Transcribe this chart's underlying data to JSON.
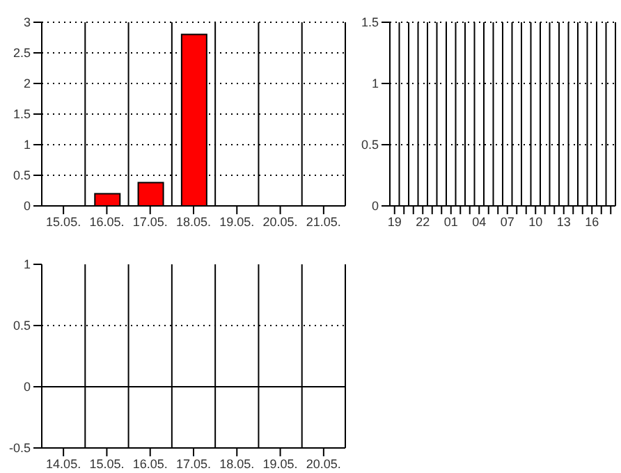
{
  "chart_data": [
    {
      "type": "bar",
      "categories": [
        "15.05.",
        "16.05.",
        "17.05.",
        "18.05.",
        "19.05.",
        "20.05.",
        "21.05."
      ],
      "values": [
        0,
        0.2,
        0.38,
        2.8,
        0,
        0,
        0
      ],
      "color": "#ff0000",
      "ylim": [
        0,
        3
      ],
      "yticks": [
        0,
        0.5,
        1,
        1.5,
        2,
        2.5,
        3
      ],
      "grid": true,
      "legend": false
    },
    {
      "type": "bar",
      "categories": [
        "19",
        null,
        null,
        "22",
        null,
        null,
        "01",
        null,
        null,
        "04",
        null,
        null,
        "07",
        null,
        null,
        "10",
        null,
        null,
        "13",
        null,
        null,
        "16",
        null,
        null
      ],
      "values": [
        0,
        0,
        0,
        0,
        0,
        0,
        0,
        0,
        0,
        0,
        0,
        0,
        0,
        0,
        0,
        0,
        0,
        0,
        0,
        0,
        0,
        0,
        0,
        0
      ],
      "color": "#ff0000",
      "ylim": [
        0,
        1.5
      ],
      "yticks": [
        0,
        0.5,
        1,
        1.5
      ],
      "grid": true,
      "legend": false
    },
    {
      "type": "bar",
      "categories": [
        "14.05.",
        "15.05.",
        "16.05.",
        "17.05.",
        "18.05.",
        "19.05.",
        "20.05."
      ],
      "values": [
        0,
        0,
        0,
        0,
        0,
        0,
        0
      ],
      "color": "#ff0000",
      "ylim": [
        -0.5,
        1
      ],
      "yticks": [
        -0.5,
        0,
        0.5,
        1
      ],
      "grid": "x",
      "legend": false,
      "ref_lines": [
        {
          "axis": "y",
          "value": 0
        },
        {
          "axis": "y",
          "value": 0.5,
          "line_style": "dotted"
        }
      ]
    }
  ]
}
